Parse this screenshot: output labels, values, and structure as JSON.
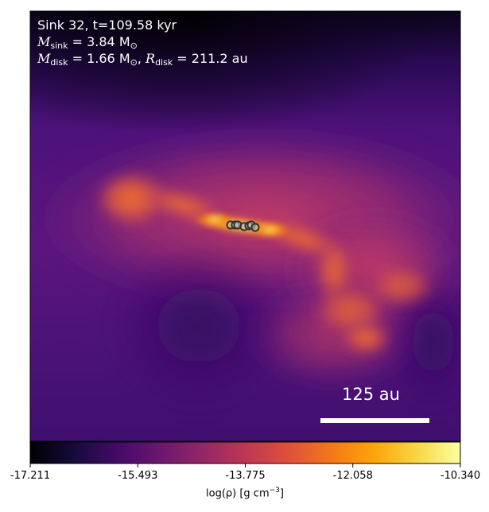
{
  "panel": {
    "title_line": "Sink 32, t=109.58 kyr",
    "msink_label": "M",
    "msink_sub": "sink",
    "msink_value": " = 3.84 M",
    "msink_unit_sub": "⊙",
    "mdisk_label": "M",
    "mdisk_sub": "disk",
    "mdisk_value": " = 1.66 M",
    "mdisk_unit_sub": "⊙",
    "rdisk_sep": ", ",
    "rdisk_label": "R",
    "rdisk_sub": "disk",
    "rdisk_value": " = 211.2 au"
  },
  "scale_bar": {
    "label": "125 au",
    "color": "#ffffff"
  },
  "colorbar": {
    "colormap": "inferno",
    "min": -17.211,
    "max": -10.34,
    "ticks": [
      "-17.211",
      "-15.493",
      "-13.775",
      "-12.058",
      "-10.340"
    ],
    "label_text": "log(ρ) [g cm",
    "label_exp": "−3",
    "label_close": "]"
  },
  "sink_markers": {
    "count": 7,
    "fill": "#bbbbbb",
    "stroke": "#333333"
  }
}
